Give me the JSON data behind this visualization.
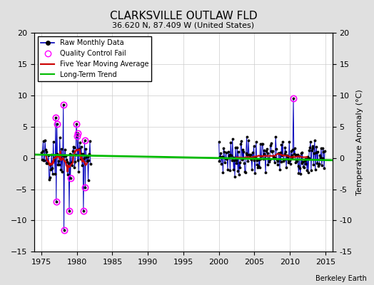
{
  "title": "CLARKSVILLE OUTLAW FLD",
  "subtitle": "36.620 N, 87.409 W (United States)",
  "ylabel": "Temperature Anomaly (°C)",
  "attribution": "Berkeley Earth",
  "xlim": [
    1974,
    2016
  ],
  "ylim": [
    -15,
    20
  ],
  "yticks_left": [
    -15,
    -10,
    -5,
    0,
    5,
    10,
    15,
    20
  ],
  "yticks_right": [
    -15,
    -10,
    -5,
    0,
    5,
    10,
    15,
    20
  ],
  "xticks": [
    1975,
    1980,
    1985,
    1990,
    1995,
    2000,
    2005,
    2010,
    2015
  ],
  "background_color": "#e0e0e0",
  "plot_bg_color": "#ffffff",
  "raw_line_color": "#0000bb",
  "raw_marker_color": "#000000",
  "qc_fail_color": "#ff00ff",
  "moving_avg_color": "#cc0000",
  "trend_color": "#00bb00",
  "trend_x": [
    1974,
    2016
  ],
  "trend_y": [
    0.55,
    -0.35
  ],
  "early_years_range": [
    1975,
    1982
  ],
  "late_years_range": [
    2000,
    2015
  ],
  "early_seed": 42,
  "late_seed": 7,
  "early_std": 1.8,
  "late_std": 1.4,
  "early_mean": 0.0,
  "late_mean": 0.2,
  "early_extreme_indices": [
    24,
    25,
    26,
    37,
    38,
    47,
    59,
    60,
    62,
    71
  ],
  "early_extreme_values": [
    6.5,
    -7.0,
    5.5,
    8.5,
    -11.5,
    -8.5,
    5.5,
    3.5,
    4.0,
    -8.5
  ],
  "late_extreme_index": 126,
  "late_extreme_value": 9.5,
  "qc_threshold_early_abs": 4.0,
  "qc_extra_range": [
    1978.9,
    1981.5
  ],
  "qc_extra_threshold": 2.5,
  "moving_avg_window_early": 12,
  "moving_avg_window_late": 60,
  "grid_color": "#cccccc",
  "grid_linewidth": 0.5,
  "raw_linewidth": 0.7,
  "raw_markersize": 1.8,
  "qc_markersize": 6,
  "qc_linewidth": 1.2,
  "ma_linewidth": 1.5,
  "trend_linewidth": 2.0,
  "title_fontsize": 11,
  "subtitle_fontsize": 8,
  "tick_labelsize": 8,
  "ylabel_fontsize": 8,
  "legend_fontsize": 7,
  "attribution_fontsize": 7
}
